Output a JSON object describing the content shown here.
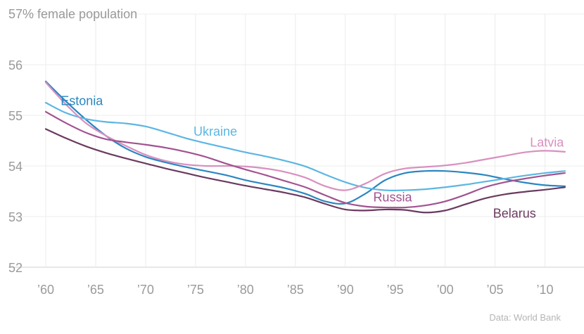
{
  "chart_data": {
    "type": "line",
    "title": "",
    "ylabel": "57% female population",
    "xlabel": "",
    "source": "Data: World Bank",
    "xlim": [
      1960,
      2012.5
    ],
    "ylim": [
      52,
      57
    ],
    "yticks": [
      52,
      53,
      54,
      55,
      56
    ],
    "xticks": [
      {
        "value": 1960,
        "label": "’60"
      },
      {
        "value": 1965,
        "label": "’65"
      },
      {
        "value": 1970,
        "label": "’70"
      },
      {
        "value": 1975,
        "label": "’75"
      },
      {
        "value": 1980,
        "label": "’80"
      },
      {
        "value": 1985,
        "label": "’85"
      },
      {
        "value": 1990,
        "label": "’90"
      },
      {
        "value": 1995,
        "label": "’95"
      },
      {
        "value": 2000,
        "label": "’00"
      },
      {
        "value": 2005,
        "label": "’05"
      },
      {
        "value": 2010,
        "label": "’10"
      }
    ],
    "grid": true,
    "x": [
      1960,
      1962,
      1964,
      1966,
      1968,
      1970,
      1972,
      1974,
      1976,
      1978,
      1980,
      1982,
      1984,
      1986,
      1988,
      1990,
      1992,
      1994,
      1996,
      1998,
      2000,
      2002,
      2004,
      2006,
      2008,
      2010,
      2012
    ],
    "series": [
      {
        "name": "Estonia",
        "color": "#2b86c1",
        "label_x": 1961.5,
        "label_y": 55.2,
        "values": [
          55.67,
          55.28,
          54.92,
          54.6,
          54.35,
          54.18,
          54.07,
          53.98,
          53.9,
          53.82,
          53.72,
          53.64,
          53.56,
          53.45,
          53.3,
          53.26,
          53.45,
          53.72,
          53.86,
          53.9,
          53.9,
          53.87,
          53.82,
          53.74,
          53.67,
          53.62,
          53.6
        ]
      },
      {
        "name": "Ukraine",
        "color": "#5cb6e2",
        "label_x": 1974.8,
        "label_y": 54.6,
        "values": [
          55.25,
          55.05,
          54.93,
          54.87,
          54.84,
          54.78,
          54.67,
          54.55,
          54.45,
          54.36,
          54.27,
          54.19,
          54.1,
          53.99,
          53.83,
          53.68,
          53.57,
          53.52,
          53.52,
          53.54,
          53.58,
          53.63,
          53.69,
          53.75,
          53.81,
          53.86,
          53.9
        ]
      },
      {
        "name": "Latvia",
        "color": "#d890bf",
        "label_x": 2008.5,
        "label_y": 54.38,
        "values": [
          55.65,
          55.22,
          54.85,
          54.6,
          54.4,
          54.22,
          54.1,
          54.03,
          54.0,
          54.0,
          53.99,
          53.95,
          53.88,
          53.77,
          53.6,
          53.52,
          53.65,
          53.85,
          53.95,
          53.98,
          54.01,
          54.06,
          54.13,
          54.2,
          54.27,
          54.3,
          54.28
        ]
      },
      {
        "name": "Russia",
        "color": "#a2528f",
        "label_x": 1992.8,
        "label_y": 53.3,
        "values": [
          55.07,
          54.85,
          54.66,
          54.53,
          54.47,
          54.42,
          54.36,
          54.28,
          54.18,
          54.05,
          53.93,
          53.82,
          53.7,
          53.58,
          53.42,
          53.27,
          53.2,
          53.18,
          53.18,
          53.22,
          53.3,
          53.43,
          53.58,
          53.68,
          53.75,
          53.81,
          53.86
        ]
      },
      {
        "name": "Belarus",
        "color": "#6a3a5f",
        "label_x": 2004.8,
        "label_y": 52.98,
        "values": [
          54.73,
          54.55,
          54.39,
          54.26,
          54.15,
          54.05,
          53.95,
          53.86,
          53.77,
          53.69,
          53.61,
          53.54,
          53.47,
          53.38,
          53.25,
          53.14,
          53.12,
          53.14,
          53.13,
          53.08,
          53.12,
          53.24,
          53.36,
          53.44,
          53.49,
          53.53,
          53.58
        ]
      }
    ]
  }
}
